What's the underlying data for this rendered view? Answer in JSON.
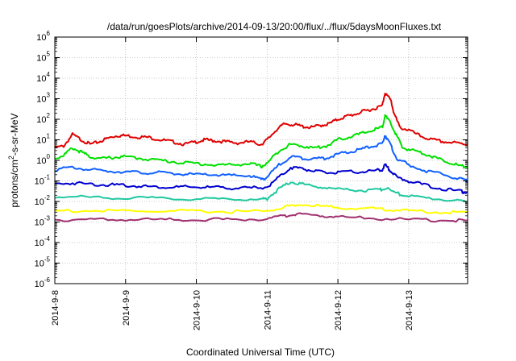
{
  "chart_data": {
    "type": "line",
    "title": "/data/run/goesPlots/archive/2014-09-13/20:00/flux/../flux/5daysMoonFluxes.txt",
    "xlabel": "Coordinated Universal Time (UTC)",
    "ylabel": {
      "prefix": "protons/cm",
      "sup": "2",
      "suffix": "-s-sr-MeV"
    },
    "y_scale": "log",
    "ylim": [
      1e-06,
      1000000.0
    ],
    "y_ticks": [
      {
        "exp": -6,
        "label_base": "10",
        "label_exp": "-6"
      },
      {
        "exp": -5,
        "label_base": "10",
        "label_exp": "-5"
      },
      {
        "exp": -4,
        "label_base": "10",
        "label_exp": "-4"
      },
      {
        "exp": -3,
        "label_base": "10",
        "label_exp": "-3"
      },
      {
        "exp": -2,
        "label_base": "10",
        "label_exp": "-2"
      },
      {
        "exp": -1,
        "label_base": "10",
        "label_exp": "-1"
      },
      {
        "exp": 0,
        "label_base": "10",
        "label_exp": "0"
      },
      {
        "exp": 1,
        "label_base": "10",
        "label_exp": "1"
      },
      {
        "exp": 2,
        "label_base": "10",
        "label_exp": "2"
      },
      {
        "exp": 3,
        "label_base": "10",
        "label_exp": "3"
      },
      {
        "exp": 4,
        "label_base": "10",
        "label_exp": "4"
      },
      {
        "exp": 5,
        "label_base": "10",
        "label_exp": "5"
      },
      {
        "exp": 6,
        "label_base": "10",
        "label_exp": "6"
      }
    ],
    "x_range": [
      "2014-09-08",
      "2014-09-13 20:00"
    ],
    "x_ticks": [
      "2014-9-8",
      "2014-9-9",
      "2014-9-10",
      "2014-9-11",
      "2014-9-12",
      "2014-9-13"
    ],
    "grid": true,
    "series": [
      {
        "color": "#e00000",
        "points": [
          [
            "2014-09-08 00:00",
            4
          ],
          [
            "2014-09-08 03:00",
            5
          ],
          [
            "2014-09-08 06:00",
            18
          ],
          [
            "2014-09-08 09:00",
            10
          ],
          [
            "2014-09-08 12:00",
            6
          ],
          [
            "2014-09-08 15:00",
            8
          ],
          [
            "2014-09-08 18:00",
            12
          ],
          [
            "2014-09-08 21:00",
            16
          ],
          [
            "2014-09-09 00:00",
            16
          ],
          [
            "2014-09-09 04:00",
            14
          ],
          [
            "2014-09-09 08:00",
            13
          ],
          [
            "2014-09-09 12:00",
            10
          ],
          [
            "2014-09-09 16:00",
            8
          ],
          [
            "2014-09-09 20:00",
            6
          ],
          [
            "2014-09-10 00:00",
            8
          ],
          [
            "2014-09-10 03:00",
            10
          ],
          [
            "2014-09-10 06:00",
            9
          ],
          [
            "2014-09-10 10:00",
            8
          ],
          [
            "2014-09-10 14:00",
            7
          ],
          [
            "2014-09-10 18:00",
            8
          ],
          [
            "2014-09-10 22:00",
            6
          ],
          [
            "2014-09-11 00:00",
            10
          ],
          [
            "2014-09-11 03:00",
            30
          ],
          [
            "2014-09-11 06:00",
            60
          ],
          [
            "2014-09-11 09:00",
            55
          ],
          [
            "2014-09-11 12:00",
            45
          ],
          [
            "2014-09-11 15:00",
            40
          ],
          [
            "2014-09-11 18:00",
            50
          ],
          [
            "2014-09-11 21:00",
            60
          ],
          [
            "2014-09-12 00:00",
            100
          ],
          [
            "2014-09-12 03:00",
            140
          ],
          [
            "2014-09-12 06:00",
            180
          ],
          [
            "2014-09-12 09:00",
            250
          ],
          [
            "2014-09-12 12:00",
            320
          ],
          [
            "2014-09-12 15:00",
            450
          ],
          [
            "2014-09-12 16:00",
            2000
          ],
          [
            "2014-09-12 18:00",
            800
          ],
          [
            "2014-09-12 19:00",
            200
          ],
          [
            "2014-09-12 21:00",
            40
          ],
          [
            "2014-09-13 00:00",
            30
          ],
          [
            "2014-09-13 04:00",
            15
          ],
          [
            "2014-09-13 08:00",
            10
          ],
          [
            "2014-09-13 12:00",
            8
          ],
          [
            "2014-09-13 16:00",
            7
          ],
          [
            "2014-09-13 20:00",
            6
          ]
        ]
      },
      {
        "color": "#00e000",
        "points": [
          [
            "2014-09-08 00:00",
            1.2
          ],
          [
            "2014-09-08 03:00",
            1.8
          ],
          [
            "2014-09-08 06:00",
            4
          ],
          [
            "2014-09-08 09:00",
            2.5
          ],
          [
            "2014-09-08 12:00",
            1.5
          ],
          [
            "2014-09-08 16:00",
            1.2
          ],
          [
            "2014-09-08 20:00",
            1.4
          ],
          [
            "2014-09-09 00:00",
            1.5
          ],
          [
            "2014-09-09 06:00",
            1.2
          ],
          [
            "2014-09-09 12:00",
            1.0
          ],
          [
            "2014-09-09 18:00",
            0.8
          ],
          [
            "2014-09-10 00:00",
            0.7
          ],
          [
            "2014-09-10 06:00",
            0.6
          ],
          [
            "2014-09-10 12:00",
            0.6
          ],
          [
            "2014-09-10 18:00",
            0.7
          ],
          [
            "2014-09-10 22:00",
            0.5
          ],
          [
            "2014-09-11 00:00",
            0.7
          ],
          [
            "2014-09-11 04:00",
            3
          ],
          [
            "2014-09-11 08:00",
            6
          ],
          [
            "2014-09-11 12:00",
            5
          ],
          [
            "2014-09-11 16:00",
            4
          ],
          [
            "2014-09-11 20:00",
            5
          ],
          [
            "2014-09-12 00:00",
            10
          ],
          [
            "2014-09-12 04:00",
            14
          ],
          [
            "2014-09-12 08:00",
            20
          ],
          [
            "2014-09-12 12:00",
            30
          ],
          [
            "2014-09-12 15:00",
            40
          ],
          [
            "2014-09-12 16:00",
            150
          ],
          [
            "2014-09-12 18:00",
            60
          ],
          [
            "2014-09-12 20:00",
            15
          ],
          [
            "2014-09-12 22:00",
            4
          ],
          [
            "2014-09-13 02:00",
            3
          ],
          [
            "2014-09-13 06:00",
            2
          ],
          [
            "2014-09-13 10:00",
            1.2
          ],
          [
            "2014-09-13 14:00",
            0.8
          ],
          [
            "2014-09-13 18:00",
            0.5
          ],
          [
            "2014-09-13 20:00",
            0.5
          ]
        ]
      },
      {
        "color": "#1060ff",
        "points": [
          [
            "2014-09-08 00:00",
            0.35
          ],
          [
            "2014-09-08 06:00",
            0.45
          ],
          [
            "2014-09-08 12:00",
            0.35
          ],
          [
            "2014-09-08 18:00",
            0.3
          ],
          [
            "2014-09-09 00:00",
            0.28
          ],
          [
            "2014-09-09 06:00",
            0.25
          ],
          [
            "2014-09-09 12:00",
            0.25
          ],
          [
            "2014-09-09 18:00",
            0.22
          ],
          [
            "2014-09-10 00:00",
            0.2
          ],
          [
            "2014-09-10 06:00",
            0.2
          ],
          [
            "2014-09-10 12:00",
            0.18
          ],
          [
            "2014-09-10 18:00",
            0.18
          ],
          [
            "2014-09-10 22:00",
            0.12
          ],
          [
            "2014-09-11 00:00",
            0.15
          ],
          [
            "2014-09-11 04:00",
            0.6
          ],
          [
            "2014-09-11 08:00",
            1.5
          ],
          [
            "2014-09-11 12:00",
            1.3
          ],
          [
            "2014-09-11 16:00",
            1.2
          ],
          [
            "2014-09-11 20:00",
            1.3
          ],
          [
            "2014-09-12 00:00",
            2
          ],
          [
            "2014-09-12 04:00",
            2.5
          ],
          [
            "2014-09-12 08:00",
            3.5
          ],
          [
            "2014-09-12 12:00",
            5
          ],
          [
            "2014-09-12 15:00",
            6
          ],
          [
            "2014-09-12 16:00",
            18
          ],
          [
            "2014-09-12 18:00",
            5
          ],
          [
            "2014-09-12 20:00",
            1.2
          ],
          [
            "2014-09-13 00:00",
            0.6
          ],
          [
            "2014-09-13 06:00",
            0.3
          ],
          [
            "2014-09-13 12:00",
            0.2
          ],
          [
            "2014-09-13 18:00",
            0.12
          ],
          [
            "2014-09-13 20:00",
            0.1
          ]
        ]
      },
      {
        "color": "#0000d0",
        "points": [
          [
            "2014-09-08 00:00",
            0.07
          ],
          [
            "2014-09-08 06:00",
            0.08
          ],
          [
            "2014-09-08 12:00",
            0.07
          ],
          [
            "2014-09-08 18:00",
            0.065
          ],
          [
            "2014-09-09 00:00",
            0.06
          ],
          [
            "2014-09-09 06:00",
            0.055
          ],
          [
            "2014-09-09 12:00",
            0.05
          ],
          [
            "2014-09-09 18:00",
            0.05
          ],
          [
            "2014-09-10 00:00",
            0.05
          ],
          [
            "2014-09-10 06:00",
            0.048
          ],
          [
            "2014-09-10 12:00",
            0.045
          ],
          [
            "2014-09-10 18:00",
            0.045
          ],
          [
            "2014-09-11 00:00",
            0.05
          ],
          [
            "2014-09-11 04:00",
            0.15
          ],
          [
            "2014-09-11 08:00",
            0.45
          ],
          [
            "2014-09-11 12:00",
            0.4
          ],
          [
            "2014-09-11 16:00",
            0.3
          ],
          [
            "2014-09-11 20:00",
            0.25
          ],
          [
            "2014-09-12 00:00",
            0.25
          ],
          [
            "2014-09-12 06:00",
            0.28
          ],
          [
            "2014-09-12 12:00",
            0.3
          ],
          [
            "2014-09-12 15:00",
            0.35
          ],
          [
            "2014-09-12 16:00",
            0.6
          ],
          [
            "2014-09-12 18:00",
            0.3
          ],
          [
            "2014-09-12 20:00",
            0.15
          ],
          [
            "2014-09-13 00:00",
            0.1
          ],
          [
            "2014-09-13 06:00",
            0.06
          ],
          [
            "2014-09-13 12:00",
            0.04
          ],
          [
            "2014-09-13 18:00",
            0.03
          ],
          [
            "2014-09-13 20:00",
            0.028
          ]
        ]
      },
      {
        "color": "#20c8a0",
        "points": [
          [
            "2014-09-08 00:00",
            0.017
          ],
          [
            "2014-09-08 12:00",
            0.016
          ],
          [
            "2014-09-09 00:00",
            0.015
          ],
          [
            "2014-09-09 12:00",
            0.014
          ],
          [
            "2014-09-10 00:00",
            0.013
          ],
          [
            "2014-09-10 12:00",
            0.013
          ],
          [
            "2014-09-10 22:00",
            0.013
          ],
          [
            "2014-09-11 00:00",
            0.014
          ],
          [
            "2014-09-11 04:00",
            0.04
          ],
          [
            "2014-09-11 08:00",
            0.09
          ],
          [
            "2014-09-11 12:00",
            0.07
          ],
          [
            "2014-09-11 18:00",
            0.05
          ],
          [
            "2014-09-12 00:00",
            0.04
          ],
          [
            "2014-09-12 08:00",
            0.035
          ],
          [
            "2014-09-12 14:00",
            0.035
          ],
          [
            "2014-09-12 16:00",
            0.045
          ],
          [
            "2014-09-12 20:00",
            0.025
          ],
          [
            "2014-09-13 00:00",
            0.018
          ],
          [
            "2014-09-13 08:00",
            0.014
          ],
          [
            "2014-09-13 16:00",
            0.011
          ],
          [
            "2014-09-13 20:00",
            0.01
          ]
        ]
      },
      {
        "color": "#ffff00",
        "points": [
          [
            "2014-09-08 00:00",
            0.0035
          ],
          [
            "2014-09-08 12:00",
            0.0035
          ],
          [
            "2014-09-09 00:00",
            0.0034
          ],
          [
            "2014-09-09 12:00",
            0.0033
          ],
          [
            "2014-09-10 00:00",
            0.0033
          ],
          [
            "2014-09-10 12:00",
            0.0032
          ],
          [
            "2014-09-11 00:00",
            0.0033
          ],
          [
            "2014-09-11 06:00",
            0.0055
          ],
          [
            "2014-09-11 10:00",
            0.007
          ],
          [
            "2014-09-11 18:00",
            0.006
          ],
          [
            "2014-09-12 00:00",
            0.005
          ],
          [
            "2014-09-12 12:00",
            0.0045
          ],
          [
            "2014-09-12 18:00",
            0.004
          ],
          [
            "2014-09-13 00:00",
            0.0035
          ],
          [
            "2014-09-13 12:00",
            0.003
          ],
          [
            "2014-09-13 20:00",
            0.003
          ]
        ]
      },
      {
        "color": "#a03070",
        "points": [
          [
            "2014-09-08 00:00",
            0.0013
          ],
          [
            "2014-09-08 12:00",
            0.0013
          ],
          [
            "2014-09-09 00:00",
            0.0013
          ],
          [
            "2014-09-09 12:00",
            0.0013
          ],
          [
            "2014-09-10 00:00",
            0.0013
          ],
          [
            "2014-09-10 12:00",
            0.0013
          ],
          [
            "2014-09-11 00:00",
            0.0014
          ],
          [
            "2014-09-11 06:00",
            0.002
          ],
          [
            "2014-09-11 10:00",
            0.0024
          ],
          [
            "2014-09-11 18:00",
            0.002
          ],
          [
            "2014-09-12 00:00",
            0.0018
          ],
          [
            "2014-09-12 12:00",
            0.0015
          ],
          [
            "2014-09-13 00:00",
            0.0013
          ],
          [
            "2014-09-13 12:00",
            0.0012
          ],
          [
            "2014-09-13 20:00",
            0.0012
          ]
        ]
      }
    ]
  }
}
